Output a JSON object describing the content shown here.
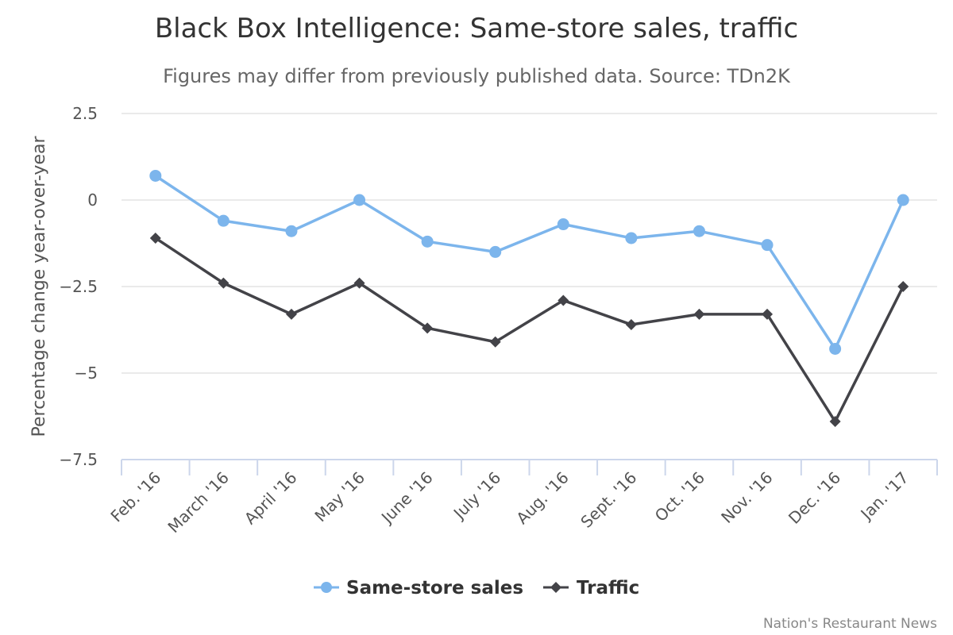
{
  "chart_data": {
    "type": "line",
    "title": "Black Box Intelligence: Same-store sales, traffic",
    "subtitle": "Figures may differ from previously published data. Source: TDn2K",
    "xlabel": "",
    "ylabel": "Percentage change year-over-year",
    "categories": [
      "Feb. '16",
      "March '16",
      "April '16",
      "May '16",
      "June '16",
      "July '16",
      "Aug. '16",
      "Sept. '16",
      "Oct. '16",
      "Nov. '16",
      "Dec. '16",
      "Jan. '17"
    ],
    "ylim": [
      -7.5,
      2.5
    ],
    "yticks": [
      2.5,
      0,
      -2.5,
      -5,
      -7.5
    ],
    "ytick_labels": [
      "2.5",
      "0",
      "−2.5",
      "−5",
      "−7.5"
    ],
    "grid": true,
    "legend_position": "bottom-center",
    "series": [
      {
        "name": "Same-store sales",
        "color": "#7cb5ec",
        "marker": "circle",
        "values": [
          0.7,
          -0.6,
          -0.9,
          0.0,
          -1.2,
          -1.5,
          -0.7,
          -1.1,
          -0.9,
          -1.3,
          -4.3,
          0.0
        ]
      },
      {
        "name": "Traffic",
        "color": "#434348",
        "marker": "diamond",
        "values": [
          -1.1,
          -2.4,
          -3.3,
          -2.4,
          -3.7,
          -4.1,
          -2.9,
          -3.6,
          -3.3,
          -3.3,
          -6.4,
          -2.5
        ]
      }
    ]
  },
  "credit": "Nation's Restaurant News"
}
